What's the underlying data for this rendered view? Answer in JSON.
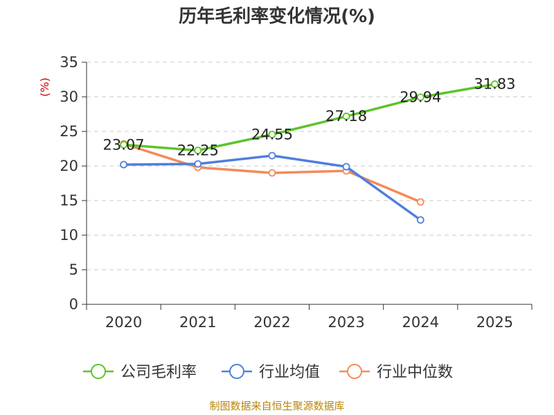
{
  "chart_data": {
    "type": "line",
    "title": "历年毛利率变化情况(%)",
    "ylabel": "(%)",
    "xlabel": "",
    "categories": [
      "2020",
      "2021",
      "2022",
      "2023",
      "2024",
      "2025"
    ],
    "ylim": [
      0,
      35
    ],
    "yticks": [
      0,
      5,
      10,
      15,
      20,
      25,
      30,
      35
    ],
    "grid": true,
    "legend_position": "bottom",
    "series": [
      {
        "name": "公司毛利率",
        "color": "#5cc42a",
        "values": [
          23.07,
          22.25,
          24.55,
          27.18,
          29.94,
          31.83
        ],
        "labels": [
          "23.07",
          "22.25",
          "24.55",
          "27.18",
          "29.94",
          "31.83"
        ]
      },
      {
        "name": "行业均值",
        "color": "#4f7fdc",
        "values": [
          20.2,
          20.3,
          21.5,
          19.9,
          12.2,
          null
        ]
      },
      {
        "name": "行业中位数",
        "color": "#f58a57",
        "values": [
          23.2,
          19.8,
          19.0,
          19.3,
          14.8,
          null
        ]
      }
    ]
  },
  "source_text": "制图数据来自恒生聚源数据库"
}
